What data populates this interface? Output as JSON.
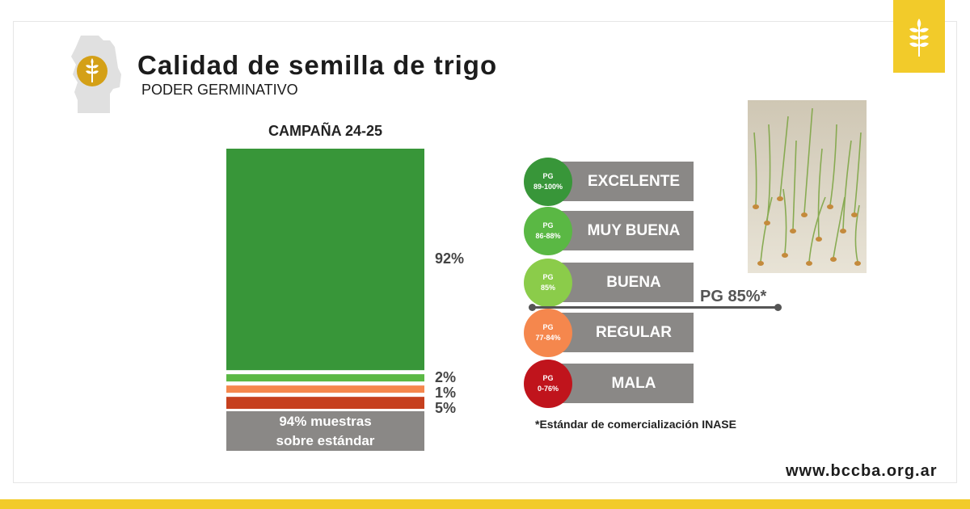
{
  "header": {
    "title": "Calidad de semilla de trigo",
    "subtitle": "PODER GERMINATIVO"
  },
  "chart_data": {
    "type": "bar",
    "stacked": true,
    "title": "CAMPAÑA 24-25",
    "categories": [
      "CAMPAÑA 24-25"
    ],
    "series": [
      {
        "name": "EXCELENTE",
        "value": 92,
        "label": "92%",
        "color": "#389639"
      },
      {
        "name": "MUY BUENA",
        "value": 2,
        "label": "2%",
        "color": "#5ab844"
      },
      {
        "name": "REGULAR",
        "value": 1,
        "label": "1%",
        "color": "#f5874d"
      },
      {
        "name": "MALA",
        "value": 5,
        "label": "5%",
        "color": "#c6401e"
      }
    ],
    "ylim": [
      0,
      100
    ]
  },
  "summary": {
    "line1": "94% muestras",
    "line2": "sobre estándar"
  },
  "legend": {
    "grades": [
      {
        "code": "PG",
        "range": "89-100%",
        "label": "EXCELENTE",
        "color": "#389639"
      },
      {
        "code": "PG",
        "range": "86-88%",
        "label": "MUY BUENA",
        "color": "#5ab844"
      },
      {
        "code": "PG",
        "range": "85%",
        "label": "BUENA",
        "color": "#8bcc4a"
      },
      {
        "code": "PG",
        "range": "77-84%",
        "label": "REGULAR",
        "color": "#f5874d"
      },
      {
        "code": "PG",
        "range": "0-76%",
        "label": "MALA",
        "color": "#c0141c"
      }
    ],
    "standard_label": "PG 85%*"
  },
  "footnote": "*Estándar de comercialización INASE",
  "website": "www.bccba.org.ar",
  "colors": {
    "brand_yellow": "#f2cb2a",
    "grey": "#8a8886",
    "gold_badge": "#d4a017"
  },
  "icons": {
    "logo": "wheat-icon",
    "map": "cordoba-province-icon",
    "photo": "germinating-wheat-photo"
  }
}
